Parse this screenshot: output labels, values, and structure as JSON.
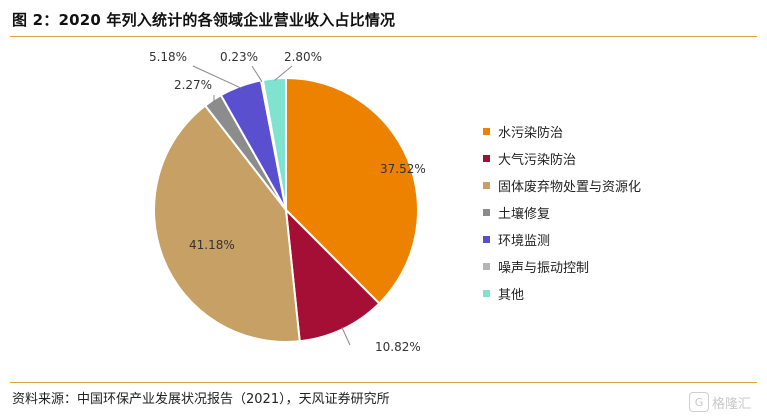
{
  "header": {
    "title": "图 2：2020 年列入统计的各领域企业营业收入占比情况"
  },
  "footer": {
    "source": "资料来源：中国环保产业发展状况报告（2021），天风证券研究所"
  },
  "watermark": {
    "text": "格隆汇",
    "icon": "G"
  },
  "chart_data": {
    "type": "pie",
    "title": "图 2：2020 年列入统计的各领域企业营业收入占比情况",
    "legend_position": "right",
    "slices": [
      {
        "label": "水污染防治",
        "value": 37.52,
        "display": "37.52%",
        "color": "#ED8100"
      },
      {
        "label": "大气污染防治",
        "value": 10.82,
        "display": "10.82%",
        "color": "#A50E35"
      },
      {
        "label": "固体废弃物处置与资源化",
        "value": 41.18,
        "display": "41.18%",
        "color": "#C6A064"
      },
      {
        "label": "土壤修复",
        "value": 2.27,
        "display": "2.27%",
        "color": "#8C8C8C"
      },
      {
        "label": "环境监测",
        "value": 5.18,
        "display": "5.18%",
        "color": "#5A4FCF"
      },
      {
        "label": "噪声与振动控制",
        "value": 0.23,
        "display": "0.23%",
        "color": "#B4B4B4"
      },
      {
        "label": "其他",
        "value": 2.8,
        "display": "2.80%",
        "color": "#7FE3CF"
      }
    ]
  }
}
